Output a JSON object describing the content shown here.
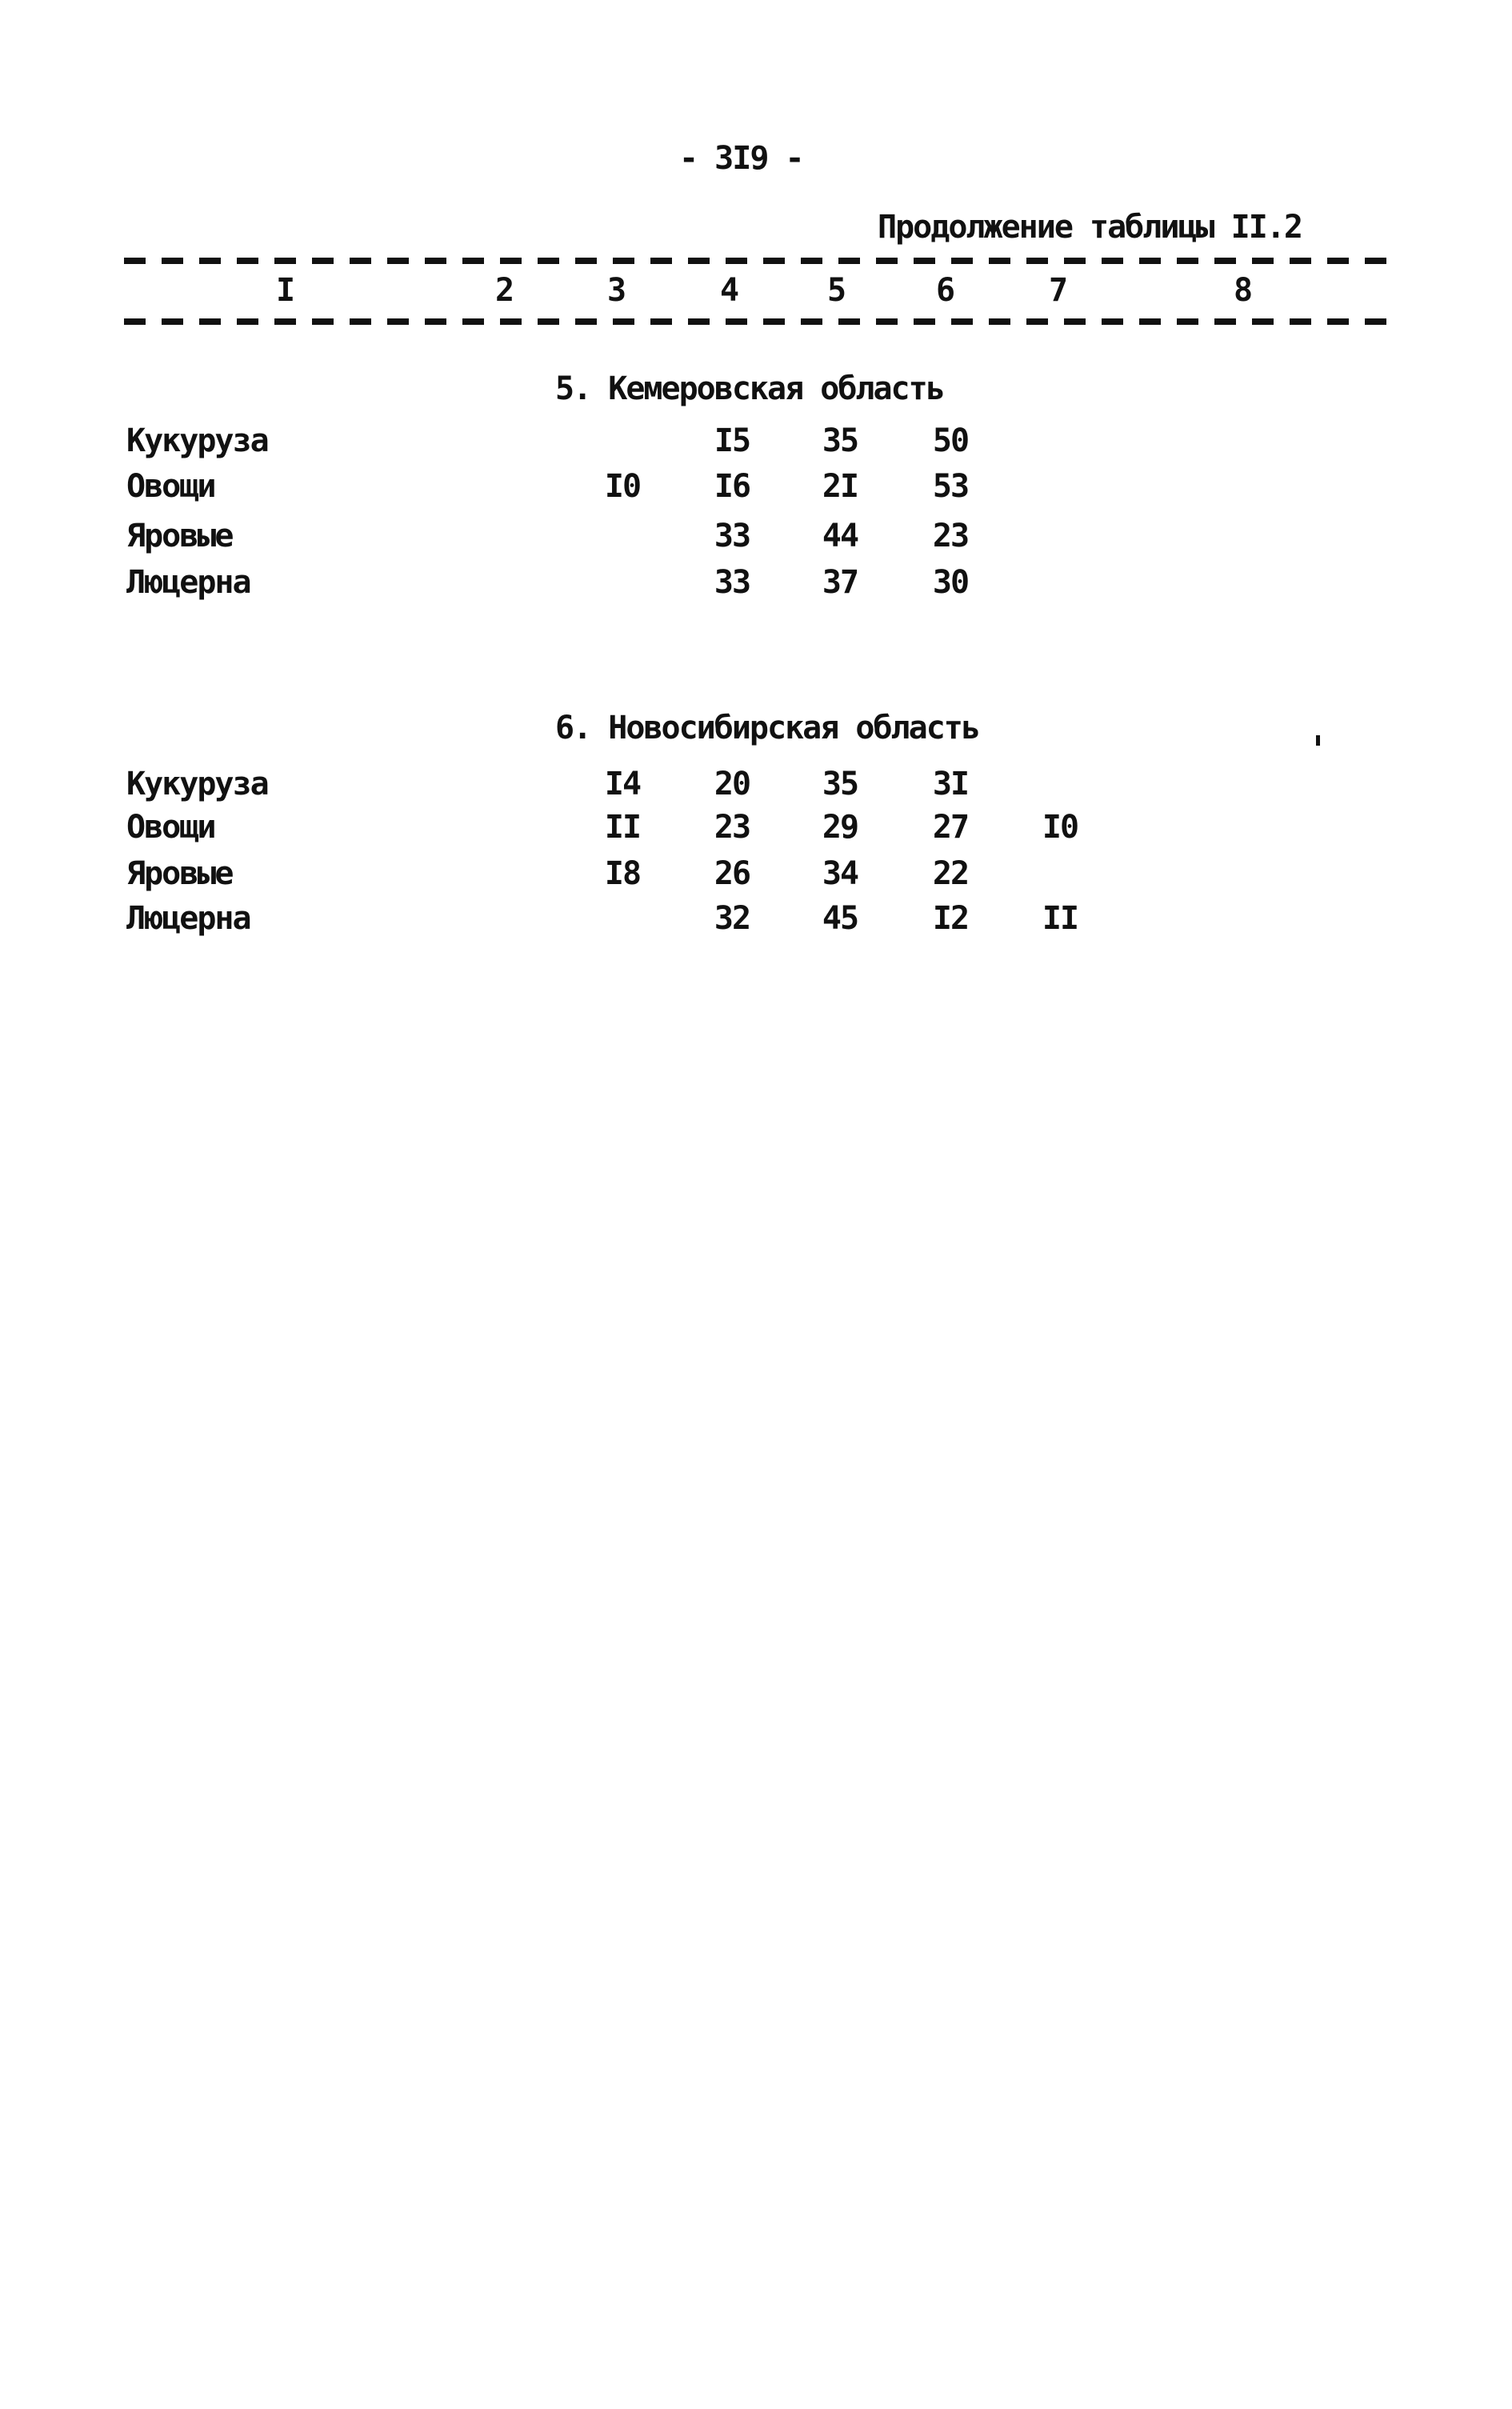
{
  "colors": {
    "ink": "#111111",
    "paper": "#ffffff"
  },
  "header": {
    "page_number": "- 3I9 -",
    "caption": "Продолжение таблицы II.2"
  },
  "table": {
    "column_headers": [
      "I",
      "2",
      "3",
      "4",
      "5",
      "6",
      "7",
      "8"
    ],
    "sections": [
      {
        "number": "5.",
        "name": "Кемеровская область",
        "rows": [
          {
            "label": "Кукуруза",
            "cells": [
              {
                "col": 4,
                "v": "I5"
              },
              {
                "col": 5,
                "v": "35"
              },
              {
                "col": 6,
                "v": "50"
              }
            ]
          },
          {
            "label": "Овощи",
            "cells": [
              {
                "col": 3,
                "v": "I0"
              },
              {
                "col": 4,
                "v": "I6"
              },
              {
                "col": 5,
                "v": "2I"
              },
              {
                "col": 6,
                "v": "53"
              }
            ]
          },
          {
            "label": "Яровые",
            "cells": [
              {
                "col": 4,
                "v": "33"
              },
              {
                "col": 5,
                "v": "44"
              },
              {
                "col": 6,
                "v": "23"
              }
            ]
          },
          {
            "label": "Люцерна",
            "cells": [
              {
                "col": 4,
                "v": "33"
              },
              {
                "col": 5,
                "v": "37"
              },
              {
                "col": 6,
                "v": "30"
              }
            ]
          }
        ]
      },
      {
        "number": "6.",
        "name": "Новосибирская область",
        "rows": [
          {
            "label": "Кукуруза",
            "cells": [
              {
                "col": 3,
                "v": "I4"
              },
              {
                "col": 4,
                "v": "20"
              },
              {
                "col": 5,
                "v": "35"
              },
              {
                "col": 6,
                "v": "3I"
              }
            ]
          },
          {
            "label": "Овощи",
            "cells": [
              {
                "col": 3,
                "v": "II"
              },
              {
                "col": 4,
                "v": "23"
              },
              {
                "col": 5,
                "v": "29"
              },
              {
                "col": 6,
                "v": "27"
              },
              {
                "col": 7,
                "v": "I0"
              }
            ]
          },
          {
            "label": "Яровые",
            "cells": [
              {
                "col": 3,
                "v": "I8"
              },
              {
                "col": 4,
                "v": "26"
              },
              {
                "col": 5,
                "v": "34"
              },
              {
                "col": 6,
                "v": "22"
              }
            ]
          },
          {
            "label": "Люцерна",
            "cells": [
              {
                "col": 4,
                "v": "32"
              },
              {
                "col": 5,
                "v": "45"
              },
              {
                "col": 6,
                "v": "I2"
              },
              {
                "col": 7,
                "v": "II"
              }
            ]
          }
        ]
      }
    ]
  }
}
